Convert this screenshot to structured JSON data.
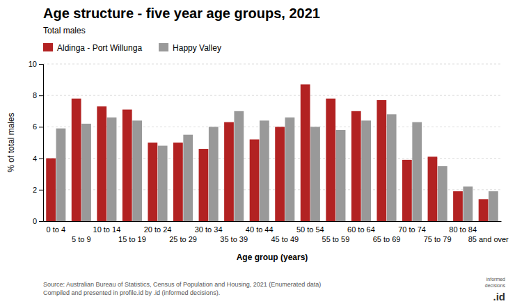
{
  "chart_data": {
    "type": "bar",
    "title": "Age structure - five year age groups, 2021",
    "subtitle": "Total males",
    "x_label": "Age group (years)",
    "y_label": "% of total males",
    "categories": [
      "0 to 4",
      "5 to 9",
      "10 to 14",
      "15 to 19",
      "20 to 24",
      "25 to 29",
      "30 to 34",
      "35 to 39",
      "40 to 44",
      "45 to 49",
      "50 to 54",
      "55 to 59",
      "60 to 64",
      "65 to 69",
      "70 to 74",
      "75 to 79",
      "80 to 84",
      "85 and over"
    ],
    "series": [
      {
        "name": "Aldinga - Port Willunga",
        "color": "#b22222",
        "values": [
          4.0,
          7.8,
          7.3,
          7.1,
          5.0,
          5.0,
          4.6,
          6.3,
          5.2,
          6.0,
          8.7,
          7.8,
          7.0,
          7.7,
          3.9,
          4.1,
          1.9,
          1.4
        ]
      },
      {
        "name": "Happy Valley",
        "color": "#999999",
        "values": [
          5.9,
          6.2,
          6.6,
          6.4,
          4.8,
          5.5,
          6.0,
          7.0,
          6.4,
          6.6,
          6.0,
          5.8,
          6.4,
          6.8,
          6.3,
          3.5,
          2.2,
          1.9
        ]
      }
    ],
    "ylim": [
      0,
      10
    ],
    "yticks": [
      0,
      2,
      4,
      6,
      8,
      10
    ],
    "grid": true,
    "legend": "top-left",
    "annotations": [
      "Source: Australian Bureau of Statistics, Census of Population and Housing, 2021 (Enumerated data)",
      "Compiled and presented in profile.id by .id (informed decisions).",
      ".id",
      "informed",
      "decisions"
    ]
  }
}
